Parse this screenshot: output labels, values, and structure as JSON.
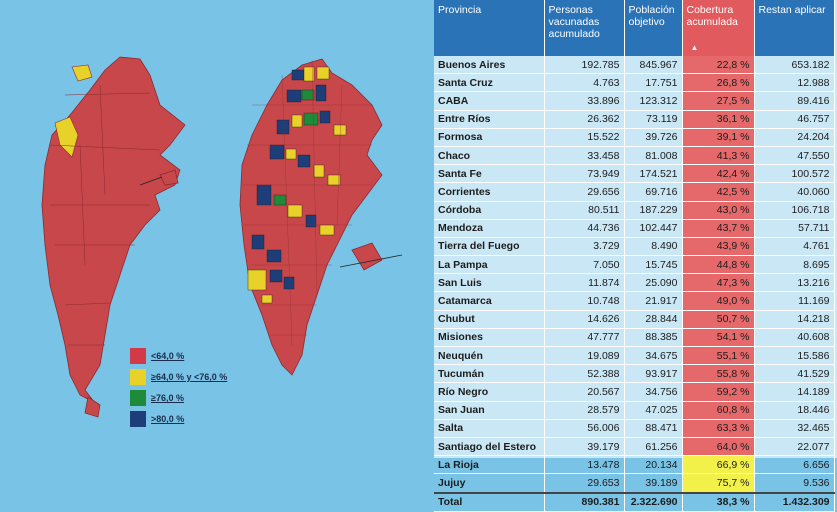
{
  "legend": [
    {
      "label": "<64,0 %",
      "color": "#d23a48"
    },
    {
      "label": "≥64,0 % y <76,0 %",
      "color": "#e8d22a"
    },
    {
      "label": "≥76,0 %",
      "color": "#1f8a3a"
    },
    {
      "label": ">80,0 %",
      "color": "#1d3e78"
    }
  ],
  "colors": {
    "map_base": "#c7474b",
    "map_border": "#8a2b2f",
    "header_blue": "#2a73b6",
    "coverage_red": "#e5686a",
    "coverage_yellow": "#f2f14a"
  },
  "chart_data": {
    "type": "table",
    "columns": [
      "Provincia",
      "Personas vacunadas acumulado",
      "Población objetivo",
      "Cobertura acumulada",
      "Restan aplicar"
    ],
    "sort_indicator": "▲",
    "rows": [
      {
        "cells": [
          "Buenos Aires",
          "192.785",
          "845.967",
          "22,8 %",
          "653.182"
        ],
        "level": "red"
      },
      {
        "cells": [
          "Santa Cruz",
          "4.763",
          "17.751",
          "26,8 %",
          "12.988"
        ],
        "level": "red"
      },
      {
        "cells": [
          "CABA",
          "33.896",
          "123.312",
          "27,5 %",
          "89.416"
        ],
        "level": "red"
      },
      {
        "cells": [
          "Entre Ríos",
          "26.362",
          "73.119",
          "36,1 %",
          "46.757"
        ],
        "level": "red"
      },
      {
        "cells": [
          "Formosa",
          "15.522",
          "39.726",
          "39,1 %",
          "24.204"
        ],
        "level": "red"
      },
      {
        "cells": [
          "Chaco",
          "33.458",
          "81.008",
          "41,3 %",
          "47.550"
        ],
        "level": "red"
      },
      {
        "cells": [
          "Santa Fe",
          "73.949",
          "174.521",
          "42,4 %",
          "100.572"
        ],
        "level": "red"
      },
      {
        "cells": [
          "Corrientes",
          "29.656",
          "69.716",
          "42,5 %",
          "40.060"
        ],
        "level": "red"
      },
      {
        "cells": [
          "Córdoba",
          "80.511",
          "187.229",
          "43,0 %",
          "106.718"
        ],
        "level": "red"
      },
      {
        "cells": [
          "Mendoza",
          "44.736",
          "102.447",
          "43,7 %",
          "57.711"
        ],
        "level": "red"
      },
      {
        "cells": [
          "Tierra del Fuego",
          "3.729",
          "8.490",
          "43,9 %",
          "4.761"
        ],
        "level": "red"
      },
      {
        "cells": [
          "La Pampa",
          "7.050",
          "15.745",
          "44,8 %",
          "8.695"
        ],
        "level": "red"
      },
      {
        "cells": [
          "San Luis",
          "11.874",
          "25.090",
          "47,3 %",
          "13.216"
        ],
        "level": "red"
      },
      {
        "cells": [
          "Catamarca",
          "10.748",
          "21.917",
          "49,0 %",
          "11.169"
        ],
        "level": "red"
      },
      {
        "cells": [
          "Chubut",
          "14.626",
          "28.844",
          "50,7 %",
          "14.218"
        ],
        "level": "red"
      },
      {
        "cells": [
          "Misiones",
          "47.777",
          "88.385",
          "54,1 %",
          "40.608"
        ],
        "level": "red"
      },
      {
        "cells": [
          "Neuquén",
          "19.089",
          "34.675",
          "55,1 %",
          "15.586"
        ],
        "level": "red"
      },
      {
        "cells": [
          "Tucumán",
          "52.388",
          "93.917",
          "55,8 %",
          "41.529"
        ],
        "level": "red"
      },
      {
        "cells": [
          "Río Negro",
          "20.567",
          "34.756",
          "59,2 %",
          "14.189"
        ],
        "level": "red"
      },
      {
        "cells": [
          "San Juan",
          "28.579",
          "47.025",
          "60,8 %",
          "18.446"
        ],
        "level": "red"
      },
      {
        "cells": [
          "Salta",
          "56.006",
          "88.471",
          "63,3 %",
          "32.465"
        ],
        "level": "red"
      },
      {
        "cells": [
          "Santiago del Estero",
          "39.179",
          "61.256",
          "64,0 %",
          "22.077"
        ],
        "level": "red"
      },
      {
        "cells": [
          "La Rioja",
          "13.478",
          "20.134",
          "66,9 %",
          "6.656"
        ],
        "level": "yellow"
      },
      {
        "cells": [
          "Jujuy",
          "29.653",
          "39.189",
          "75,7 %",
          "9.536"
        ],
        "level": "yellow"
      }
    ],
    "total": [
      "Total",
      "890.381",
      "2.322.690",
      "38,3 %",
      "1.432.309"
    ]
  }
}
